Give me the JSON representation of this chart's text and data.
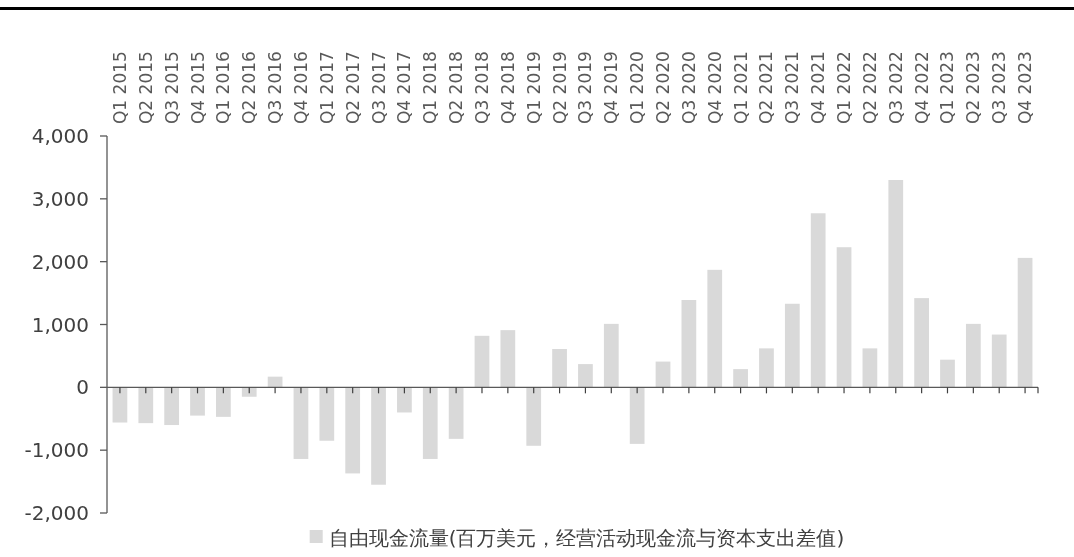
{
  "chart_data": {
    "type": "bar",
    "categories": [
      "Q1 2015",
      "Q2 2015",
      "Q3 2015",
      "Q4 2015",
      "Q1 2016",
      "Q2 2016",
      "Q3 2016",
      "Q4 2016",
      "Q1 2017",
      "Q2 2017",
      "Q3 2017",
      "Q4 2017",
      "Q1 2018",
      "Q2 2018",
      "Q3 2018",
      "Q4 2018",
      "Q1 2019",
      "Q2 2019",
      "Q3 2019",
      "Q4 2019",
      "Q1 2020",
      "Q2 2020",
      "Q3 2020",
      "Q4 2020",
      "Q1 2021",
      "Q2 2021",
      "Q3 2021",
      "Q4 2021",
      "Q1 2022",
      "Q2 2022",
      "Q3 2022",
      "Q4 2022",
      "Q1 2023",
      "Q2 2023",
      "Q3 2023",
      "Q4 2023"
    ],
    "series": [
      {
        "name": "自由现金流量(百万美元，经营活动现金流与资本支出差值)",
        "color": "#d9d9d9",
        "values": [
          -560,
          -570,
          -600,
          -450,
          -470,
          -150,
          170,
          -1140,
          -850,
          -1370,
          -1550,
          -400,
          -1140,
          -820,
          820,
          910,
          -930,
          610,
          370,
          1010,
          -900,
          410,
          1390,
          1870,
          290,
          620,
          1330,
          2770,
          2230,
          620,
          3300,
          1420,
          440,
          1010,
          840,
          2060
        ]
      }
    ],
    "ylim": [
      -2000,
      4000
    ],
    "yticks": [
      {
        "value": -2000,
        "label": "-2,000"
      },
      {
        "value": -1000,
        "label": "-1,000"
      },
      0,
      {
        "value": 1000,
        "label": "1,000"
      },
      {
        "value": 2000,
        "label": "2,000"
      },
      {
        "value": 3000,
        "label": "3,000"
      },
      {
        "value": 4000,
        "label": "4,000"
      }
    ],
    "legend": "bottom"
  }
}
